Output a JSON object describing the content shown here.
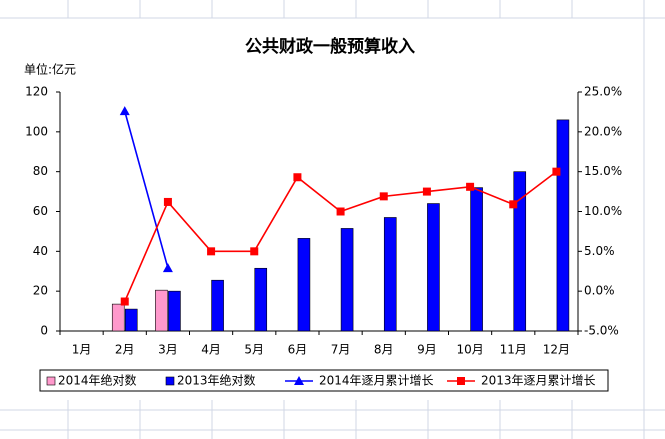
{
  "chart_data": {
    "type": "bar",
    "title": "公共财政一般预算收入",
    "y_label": "单位:亿元",
    "categories": [
      "1月",
      "2月",
      "3月",
      "4月",
      "5月",
      "6月",
      "7月",
      "8月",
      "9月",
      "10月",
      "11月",
      "12月"
    ],
    "series": [
      {
        "name": "2014年绝对数",
        "type": "bar",
        "color": "#ff99cc",
        "values": [
          null,
          13.5,
          20.5,
          null,
          null,
          null,
          null,
          null,
          null,
          null,
          null,
          null
        ]
      },
      {
        "name": "2013年绝对数",
        "type": "bar",
        "color": "#0000ff",
        "values": [
          null,
          11,
          20,
          25.5,
          31.5,
          46.5,
          51.5,
          57,
          64,
          72,
          80,
          106
        ]
      },
      {
        "name": "2014年逐月累计增长",
        "type": "line",
        "marker": "triangle",
        "axis": "y2",
        "color": "#0000ff",
        "values": [
          null,
          22.6,
          2.9,
          null,
          null,
          null,
          null,
          null,
          null,
          null,
          null,
          null
        ]
      },
      {
        "name": "2013年逐月累计增长",
        "type": "line",
        "marker": "square",
        "axis": "y2",
        "color": "#ff0000",
        "values": [
          null,
          -1.3,
          11.2,
          5.0,
          5.0,
          14.3,
          10.0,
          11.9,
          12.5,
          13.1,
          10.9,
          15.0
        ]
      }
    ],
    "ylim": [
      0,
      120
    ],
    "yticks": [
      0,
      20,
      40,
      60,
      80,
      100,
      120
    ],
    "y2lim": [
      -5,
      25
    ],
    "y2ticks": [
      {
        "value": -5,
        "label": "-5.0%"
      },
      {
        "value": 0,
        "label": "0.0%"
      },
      {
        "value": 5,
        "label": "5.0%"
      },
      {
        "value": 10,
        "label": "10.0%"
      },
      {
        "value": 15,
        "label": "15.0%"
      },
      {
        "value": 20,
        "label": "20.0%"
      },
      {
        "value": 25,
        "label": "25.0%"
      }
    ],
    "legend": "bottom"
  }
}
